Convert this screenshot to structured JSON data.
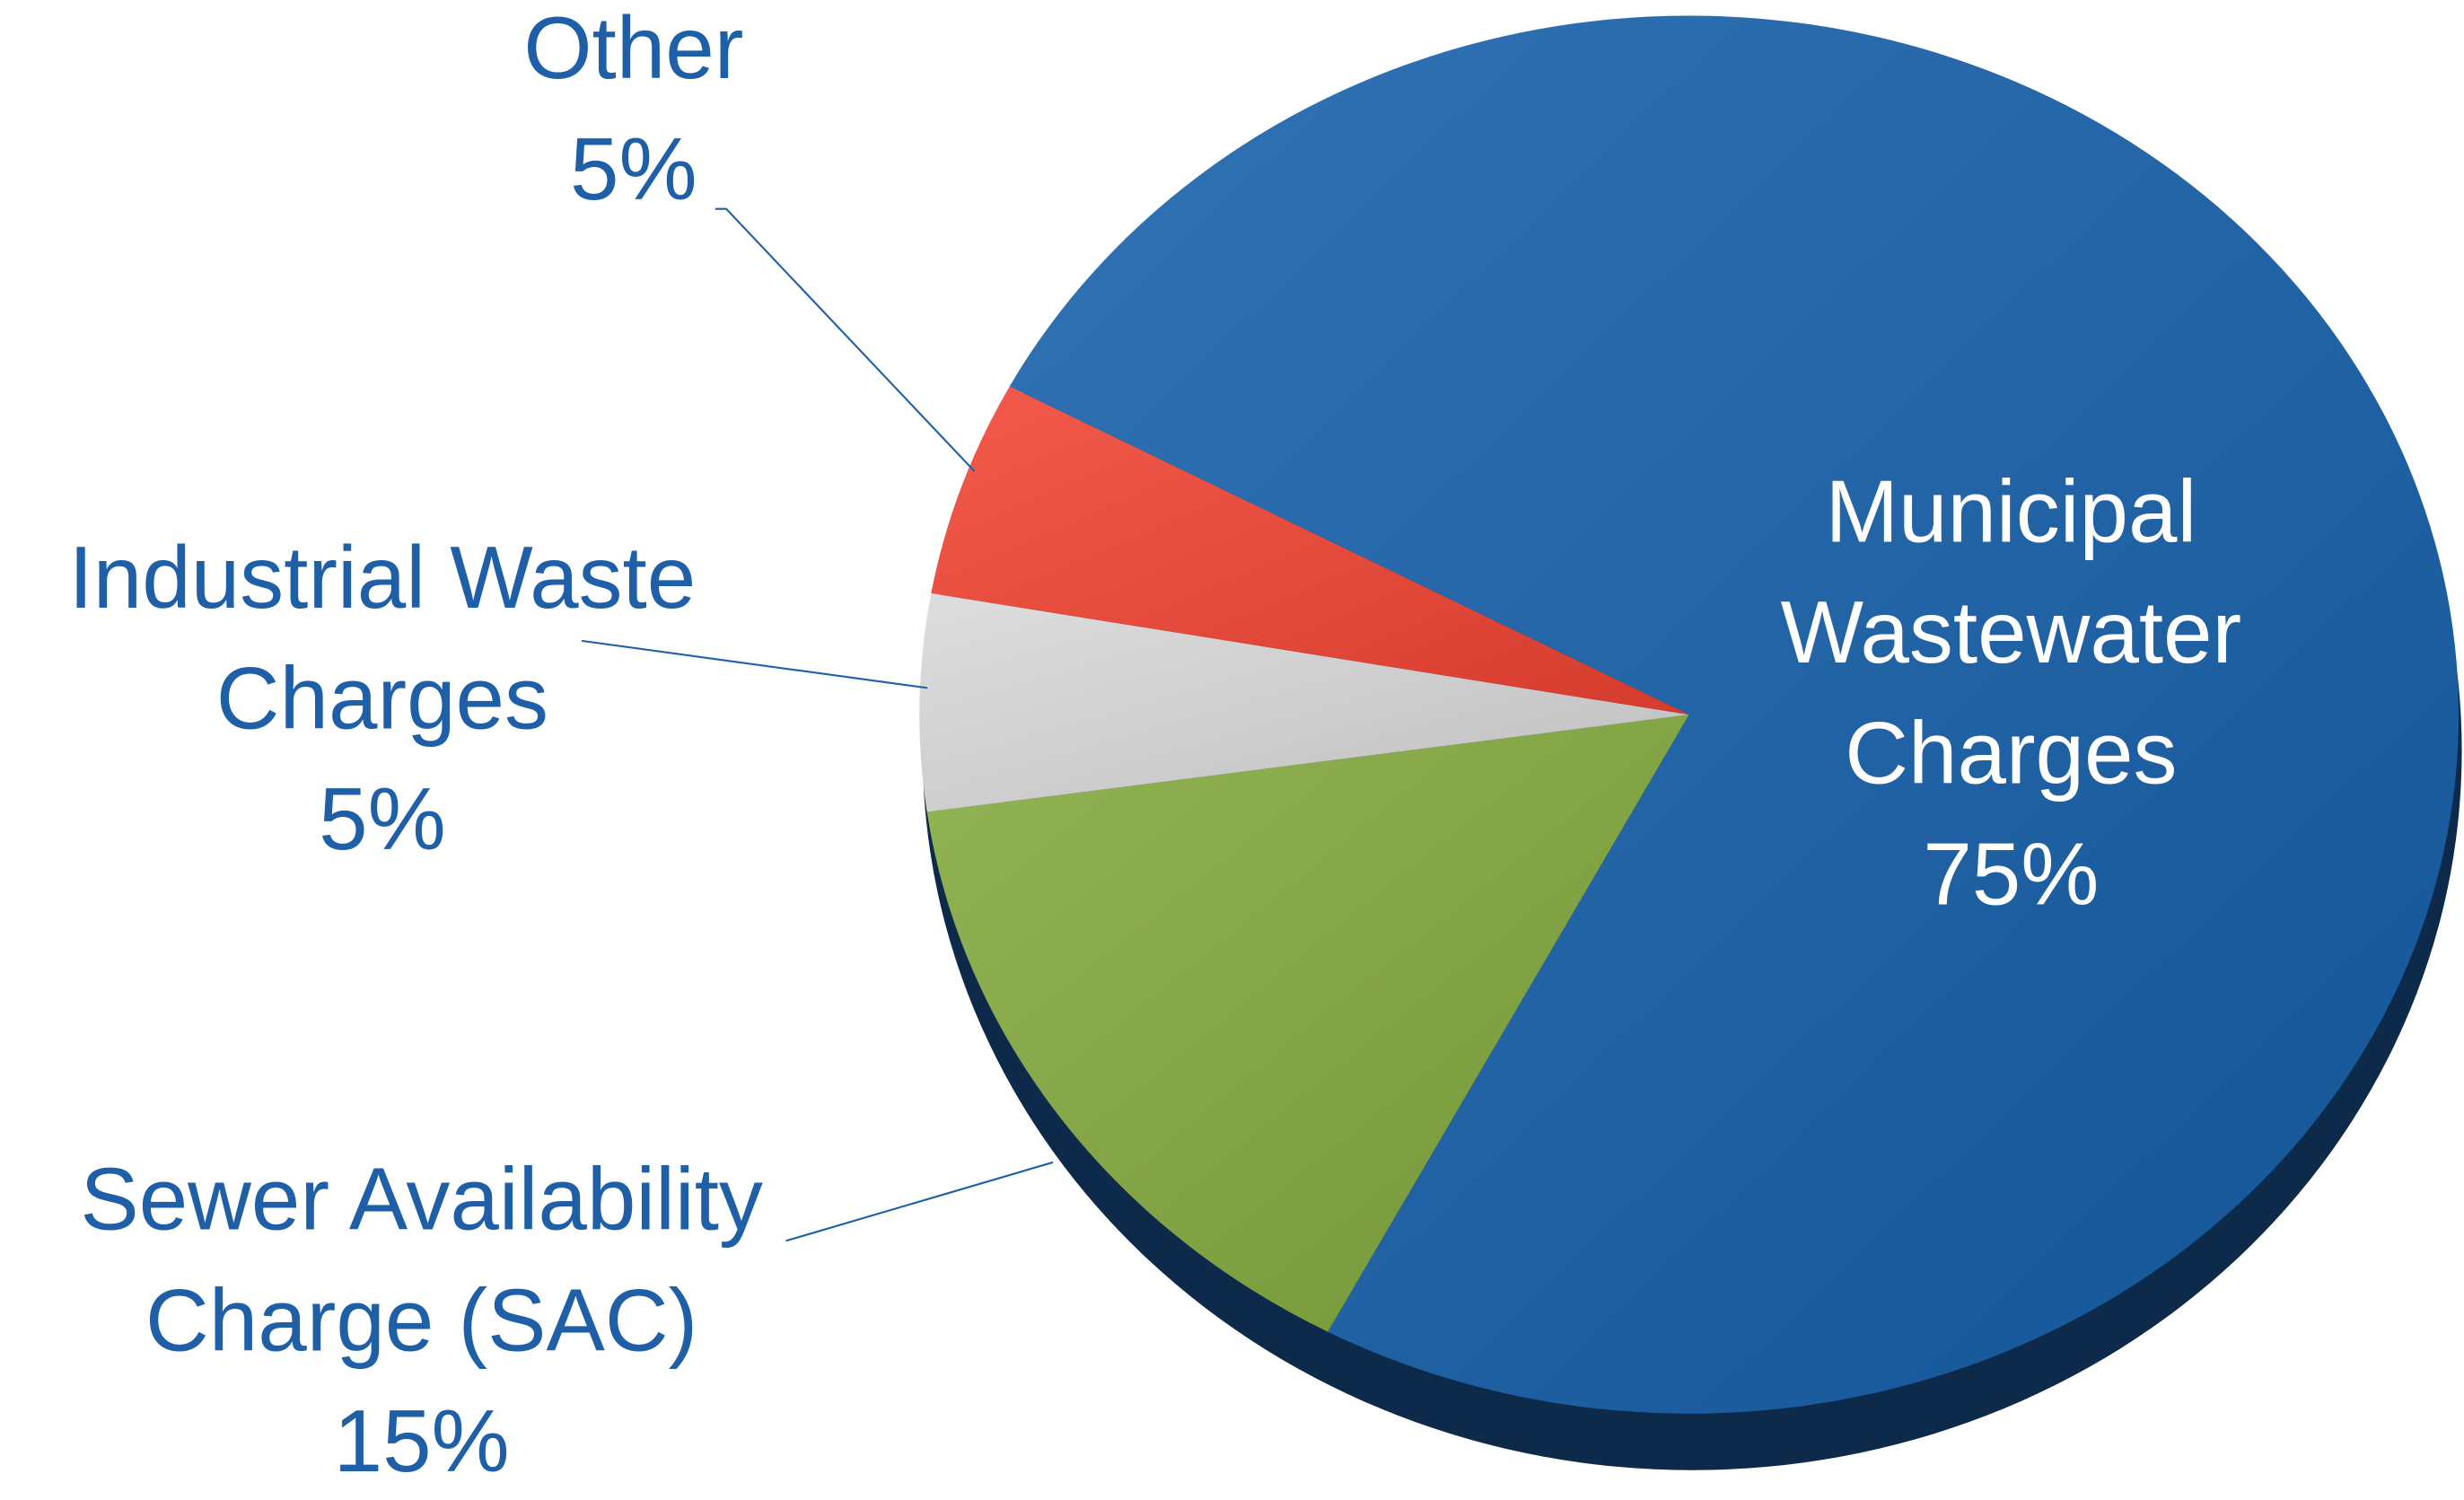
{
  "chart_data": {
    "type": "pie",
    "categories": [
      [
        "Municipal",
        "Wastewater",
        "Charges"
      ],
      [
        "Sewer Availability",
        "Charge (SAC)"
      ],
      [
        "Industrial Waste",
        "Charges"
      ],
      [
        "Other"
      ]
    ],
    "values": [
      75,
      15,
      5,
      5
    ],
    "value_labels": [
      "75%",
      "15%",
      "5%",
      "5%"
    ],
    "colors": [
      "#1560aa",
      "#84aa3e",
      "#d9d9d9",
      "#f24433"
    ]
  }
}
